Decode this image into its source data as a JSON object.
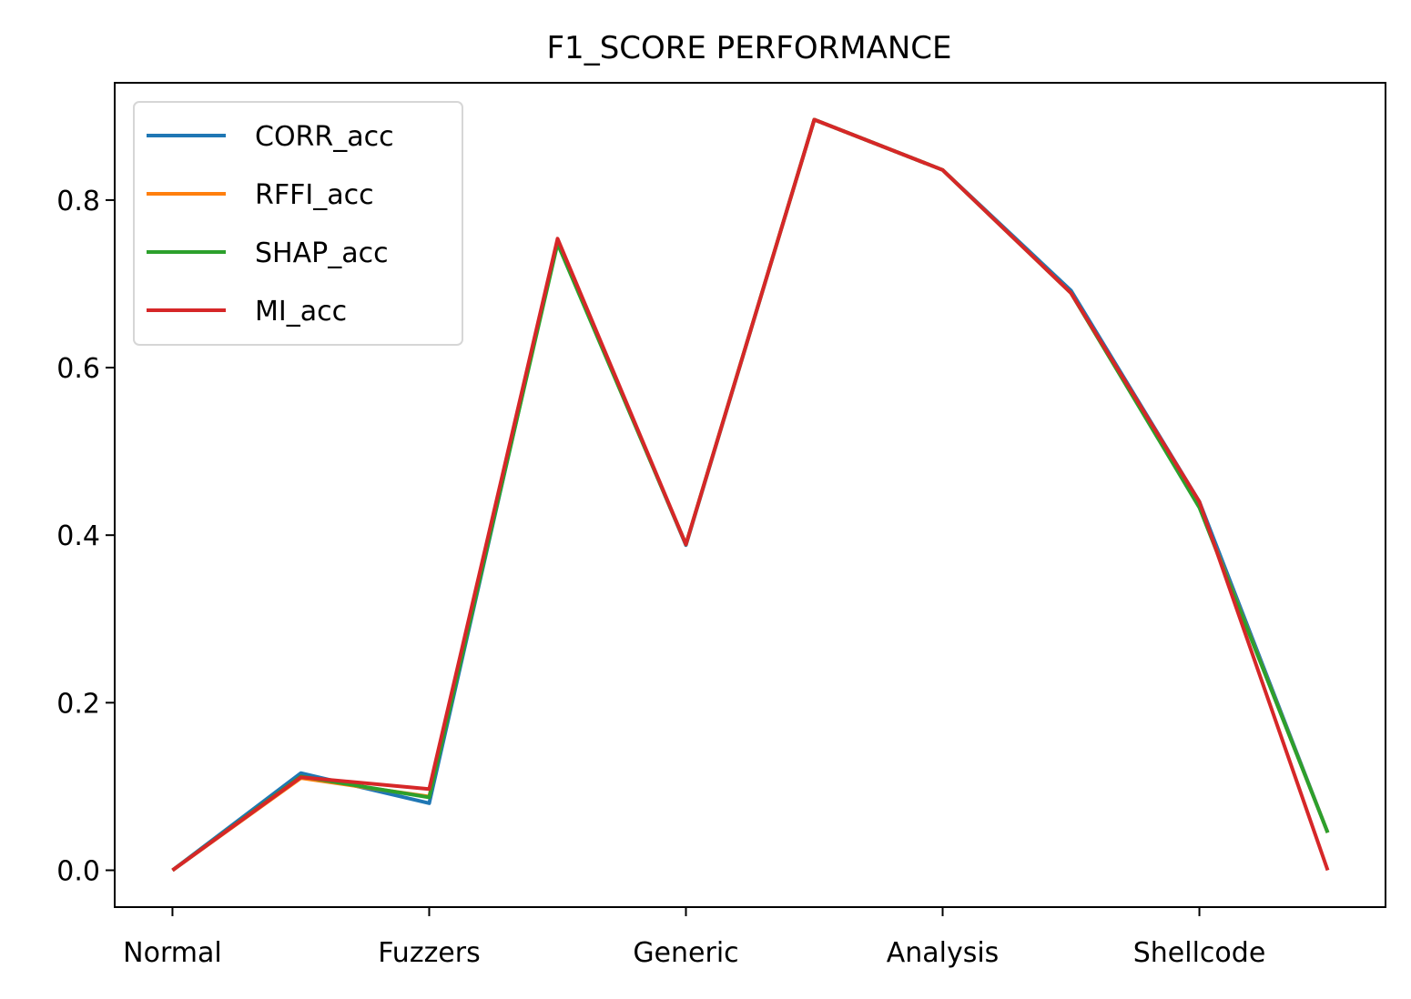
{
  "chart_data": {
    "type": "line",
    "title": "F1_SCORE PERFORMANCE",
    "xlabel": "",
    "ylabel": "",
    "x_tick_labels": [
      "Normal",
      "Fuzzers",
      "Generic",
      "Analysis",
      "Shellcode"
    ],
    "x_tick_positions": [
      0,
      2,
      4,
      6,
      8
    ],
    "x_range": [
      -0.45,
      9.45
    ],
    "y_ticks": [
      0.0,
      0.2,
      0.4,
      0.6,
      0.8
    ],
    "y_tick_labels": [
      "0.0",
      "0.2",
      "0.4",
      "0.6",
      "0.8"
    ],
    "ylim": [
      -0.044,
      0.94
    ],
    "grid": false,
    "legend_position": "top-left",
    "series": [
      {
        "name": "CORR_acc",
        "color": "#1f77b4",
        "values": [
          0.0,
          0.116,
          0.08,
          0.752,
          0.388,
          0.896,
          0.836,
          0.692,
          0.44,
          0.045
        ]
      },
      {
        "name": "RFFI_acc",
        "color": "#ff7f0e",
        "values": [
          0.0,
          0.11,
          0.088,
          0.75,
          0.389,
          0.896,
          0.836,
          0.689,
          0.434,
          0.045
        ]
      },
      {
        "name": "SHAP_acc",
        "color": "#2ca02c",
        "values": [
          0.0,
          0.112,
          0.087,
          0.748,
          0.389,
          0.896,
          0.836,
          0.689,
          0.433,
          0.045
        ]
      },
      {
        "name": "MI_acc",
        "color": "#d62728",
        "values": [
          0.0,
          0.111,
          0.097,
          0.754,
          0.389,
          0.896,
          0.836,
          0.689,
          0.44,
          0.0
        ]
      }
    ]
  }
}
